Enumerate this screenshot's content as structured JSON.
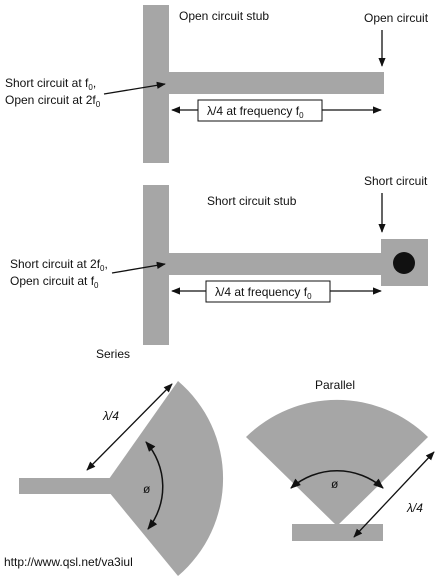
{
  "colors": {
    "stub_fill": "#a6a6a6",
    "ink": "#111111",
    "background": "#ffffff"
  },
  "diagram_1": {
    "title": "Open circuit stub",
    "end_label": "Open circuit",
    "left_label_line1": "Short circuit at f",
    "left_label_line1_sub": "0",
    "left_label_line1_tail": ",",
    "left_label_line2": "Open circuit at 2f",
    "left_label_line2_sub": "0",
    "length_label_prefix": "λ/4 at frequency f",
    "length_label_sub": "0"
  },
  "diagram_2": {
    "title": "Short circuit stub",
    "end_label": "Short circuit",
    "left_label_line1": "Short circuit at 2f",
    "left_label_line1_sub": "0",
    "left_label_line1_tail": ",",
    "left_label_line2": "Open circuit at f",
    "left_label_line2_sub": "0",
    "length_label_prefix": "λ/4 at frequency f",
    "length_label_sub": "0"
  },
  "diagram_series": {
    "title": "Series",
    "length_label": "λ/4",
    "angle_label": "ø"
  },
  "diagram_parallel": {
    "title": "Parallel",
    "length_label": "λ/4",
    "angle_label": "ø"
  },
  "footer": {
    "url": "http://www.qsl.net/va3iul"
  }
}
